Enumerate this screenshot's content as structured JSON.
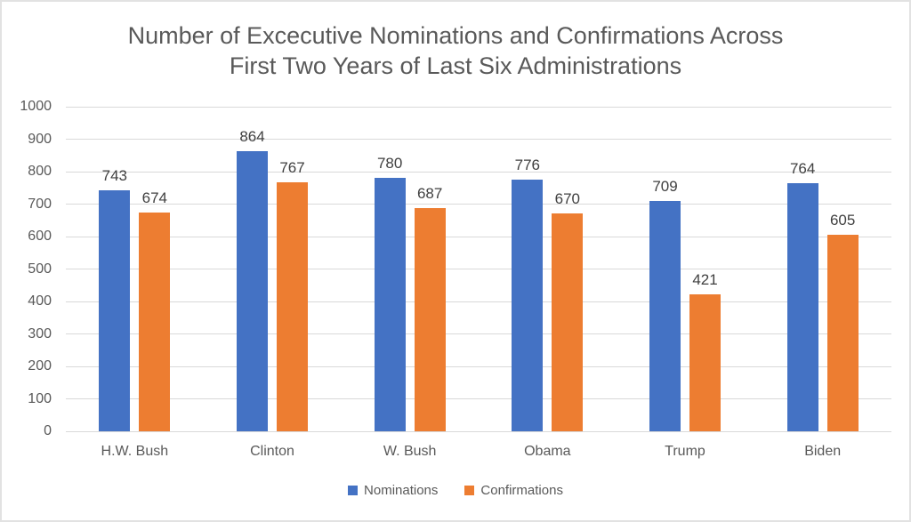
{
  "title_line1": "Number of Excecutive Nominations and Confirmations Across",
  "title_line2": "First Two Years of Last Six Administrations",
  "colors": {
    "nominations": "#4472C4",
    "confirmations": "#ED7D31",
    "gridline": "#D9D9D9",
    "axis_text": "#595959",
    "value_label_text": "#404040",
    "title_text": "#595959"
  },
  "chart_data": {
    "type": "bar",
    "title": "Number of Excecutive Nominations and Confirmations Across First Two Years of Last Six Administrations",
    "categories": [
      "H.W. Bush",
      "Clinton",
      "W. Bush",
      "Obama",
      "Trump",
      "Biden"
    ],
    "series": [
      {
        "name": "Nominations",
        "color": "#4472C4",
        "values": [
          743,
          864,
          780,
          776,
          709,
          764
        ]
      },
      {
        "name": "Confirmations",
        "color": "#ED7D31",
        "values": [
          674,
          767,
          687,
          670,
          421,
          605
        ]
      }
    ],
    "xlabel": "",
    "ylabel": "",
    "ylim": [
      0,
      1000
    ],
    "ytick_step": 100,
    "yticks": [
      "0",
      "100",
      "200",
      "300",
      "400",
      "500",
      "600",
      "700",
      "800",
      "900",
      "1000"
    ],
    "grid": "horizontal",
    "legend_position": "bottom",
    "data_labels": true
  }
}
